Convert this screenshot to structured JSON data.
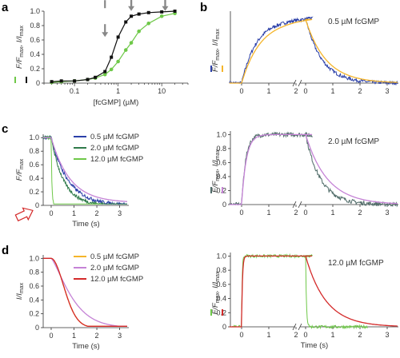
{
  "panel_letters": {
    "a": "a",
    "b": "b",
    "c": "c",
    "d": "d"
  },
  "colors": {
    "blue": "#2b3fa8",
    "orange": "#f5b52a",
    "green": "#6ec848",
    "darkgreen": "#2f7a4a",
    "purple": "#c583d6",
    "red": "#d42a2a",
    "slate": "#4f6b68",
    "black": "#111111",
    "arrow": "#888888"
  },
  "chart_data": [
    {
      "id": "a",
      "type": "scatter",
      "x_scale": "log",
      "xlabel": "[fcGMP] (µM)",
      "ylabel_parts": [
        "F/F",
        "max",
        ",  I/I",
        "max"
      ],
      "xlim": [
        0.02,
        40
      ],
      "ylim": [
        0,
        1.0
      ],
      "xticks": [
        {
          "v": 0.1,
          "label": "0.1"
        },
        {
          "v": 1,
          "label": "1"
        },
        {
          "v": 10,
          "label": "10"
        }
      ],
      "yticks": [
        "0",
        "0.2",
        "0.4",
        "0.6",
        "0.8",
        "1.0"
      ],
      "arrows_at_x": [
        0.5,
        2,
        12
      ],
      "series": [
        {
          "color": "green",
          "x": [
            0.03,
            0.05,
            0.1,
            0.2,
            0.3,
            0.5,
            0.7,
            1,
            1.5,
            2,
            3,
            5,
            10,
            20
          ],
          "y": [
            0.01,
            0.02,
            0.03,
            0.05,
            0.07,
            0.12,
            0.19,
            0.3,
            0.46,
            0.56,
            0.72,
            0.83,
            0.93,
            0.97
          ]
        },
        {
          "color": "black",
          "x": [
            0.03,
            0.05,
            0.1,
            0.2,
            0.3,
            0.5,
            0.7,
            1,
            1.5,
            2,
            3,
            5,
            10,
            20
          ],
          "y": [
            0.02,
            0.03,
            0.03,
            0.05,
            0.08,
            0.16,
            0.36,
            0.64,
            0.85,
            0.93,
            0.96,
            0.98,
            0.99,
            1.0
          ]
        }
      ]
    },
    {
      "id": "b_top",
      "type": "line",
      "annotation": "0.5 µM fcGMP",
      "ylabel_parts": [
        "F/F",
        "max",
        ",  I/I",
        "max"
      ],
      "xticks_left": [
        "0",
        "1",
        "2"
      ],
      "xticks_right": [
        "0",
        "1",
        "2",
        "3"
      ],
      "series": [
        {
          "color": "blue",
          "noise": 0.025,
          "kind": "slow_rise",
          "tau_on": 0.55,
          "tau_off": 0.6,
          "plateau": 0.93
        },
        {
          "color": "orange",
          "noise": 0.0,
          "kind": "slow_rise",
          "tau_on": 0.7,
          "tau_off": 0.75,
          "plateau": 0.93
        }
      ]
    },
    {
      "id": "b_mid",
      "type": "line",
      "annotation": "2.0 µM fcGMP",
      "ylabel_parts": [
        "F/F",
        "max",
        ",  I/I",
        "max"
      ],
      "yticks": [
        "0",
        "0.2",
        "0.4",
        "0.6",
        "0.8",
        "1.0"
      ],
      "xticks_left": [
        "0",
        "1",
        "2"
      ],
      "xticks_right": [
        "0",
        "1",
        "2",
        "3"
      ],
      "series": [
        {
          "color": "slate",
          "noise": 0.03,
          "kind": "rise_decay",
          "tau_on": 0.15,
          "tau_off": 0.55
        },
        {
          "color": "purple",
          "noise": 0.0,
          "kind": "rise_decay",
          "tau_on": 0.17,
          "tau_off": 0.8
        }
      ]
    },
    {
      "id": "b_bot",
      "type": "line",
      "annotation": "12.0 µM fcGMP",
      "ylabel_parts": [
        "F/F",
        "max",
        ",  I/I",
        "max"
      ],
      "xlabel": "Time (s)",
      "yticks": [
        "0",
        "0.2",
        "0.4",
        "0.6",
        "0.8",
        "1.0"
      ],
      "xticks_left": [
        "0",
        "1",
        "2"
      ],
      "xticks_right": [
        "0",
        "1",
        "2",
        "3"
      ],
      "series": [
        {
          "color": "green",
          "noise": 0.02,
          "kind": "fast",
          "tau_on": 0.02,
          "tau_off": 0.03
        },
        {
          "color": "red",
          "noise": 0.0,
          "kind": "rise_decay",
          "tau_on": 0.03,
          "tau_off": 0.75
        }
      ]
    },
    {
      "id": "c",
      "type": "line",
      "xlabel": "Time (s)",
      "ylabel_parts": [
        "F/F",
        "max"
      ],
      "xlim": [
        -0.35,
        3.4
      ],
      "ylim": [
        0,
        1.05
      ],
      "xticks": [
        "0",
        "1",
        "2",
        "3"
      ],
      "yticks": [
        "0",
        "0.2",
        "0.4",
        "0.6",
        "0.8",
        "1.0"
      ],
      "series": [
        {
          "name": "0.5 µM fcGMP",
          "color": "blue",
          "tau": 0.75,
          "noise": 0.025
        },
        {
          "name": "2.0 µM fcGMP",
          "color": "darkgreen",
          "tau": 0.55,
          "noise": 0.025
        },
        {
          "name": "12.0 µM fcGMP",
          "color": "green",
          "tau": 0.03,
          "noise": 0.015,
          "end": 2.2
        },
        {
          "name": "",
          "color": "purple",
          "tau": 0.82,
          "noise": 0.0
        }
      ]
    },
    {
      "id": "d",
      "type": "line",
      "xlabel": "Time (s)",
      "ylabel_parts": [
        "I/I",
        "max"
      ],
      "xlim": [
        -0.35,
        3.4
      ],
      "ylim": [
        0,
        1.05
      ],
      "xticks": [
        "0",
        "1",
        "2",
        "3"
      ],
      "yticks": [
        "0",
        "0.2",
        "0.4",
        "0.6",
        "0.8",
        "1.0"
      ],
      "series": [
        {
          "name": "0.5 µM fcGMP",
          "color": "orange",
          "tau": 0.78
        },
        {
          "name": "2.0 µM fcGMP",
          "color": "purple",
          "tau": 1.05
        },
        {
          "name": "12.0 µM fcGMP",
          "color": "red",
          "tau": 0.78
        }
      ]
    }
  ]
}
